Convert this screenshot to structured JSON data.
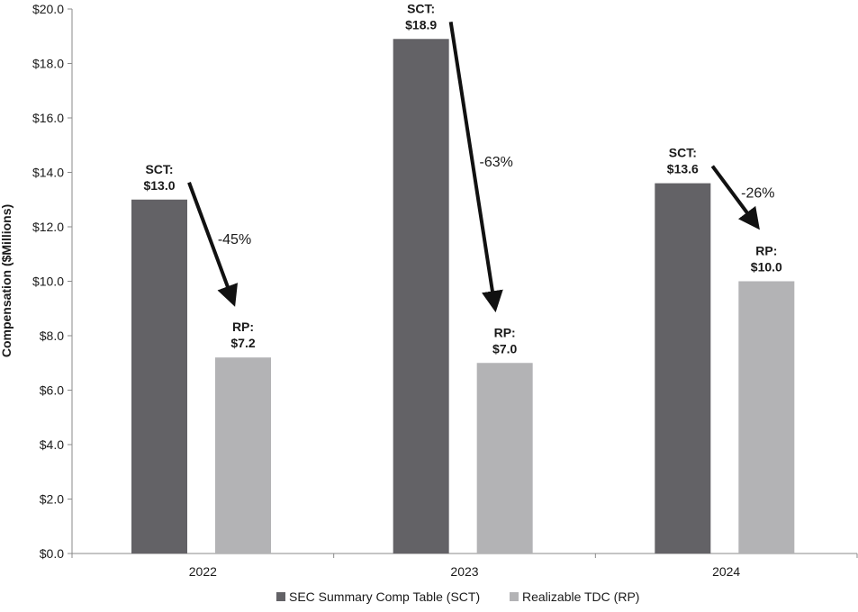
{
  "chart_data": {
    "type": "bar",
    "categories": [
      "2022",
      "2023",
      "2024"
    ],
    "series": [
      {
        "name": "SEC Summary Comp Table (SCT)",
        "color": "#636266",
        "values": [
          13.0,
          18.9,
          13.6
        ]
      },
      {
        "name": "Realizable TDC (RP)",
        "color": "#b3b3b5",
        "values": [
          7.2,
          7.0,
          10.0
        ]
      }
    ],
    "ylabel": "Compensation ($Millions)",
    "ylim": [
      0,
      20
    ],
    "yticks": [
      "$0.0",
      "$2.0",
      "$4.0",
      "$6.0",
      "$8.0",
      "$10.0",
      "$12.0",
      "$14.0",
      "$16.0",
      "$18.0",
      "$20.0"
    ],
    "grid": false,
    "legend": "bottom",
    "data_labels": {
      "sct": [
        {
          "line1": "SCT:",
          "line2": "$13.0"
        },
        {
          "line1": "SCT:",
          "line2": "$18.9"
        },
        {
          "line1": "SCT:",
          "line2": "$13.6"
        }
      ],
      "rp": [
        {
          "line1": "RP:",
          "line2": "$7.2"
        },
        {
          "line1": "RP:",
          "line2": "$7.0"
        },
        {
          "line1": "RP:",
          "line2": "$10.0"
        }
      ]
    },
    "changes": [
      "-45%",
      "-63%",
      "-26%"
    ]
  }
}
